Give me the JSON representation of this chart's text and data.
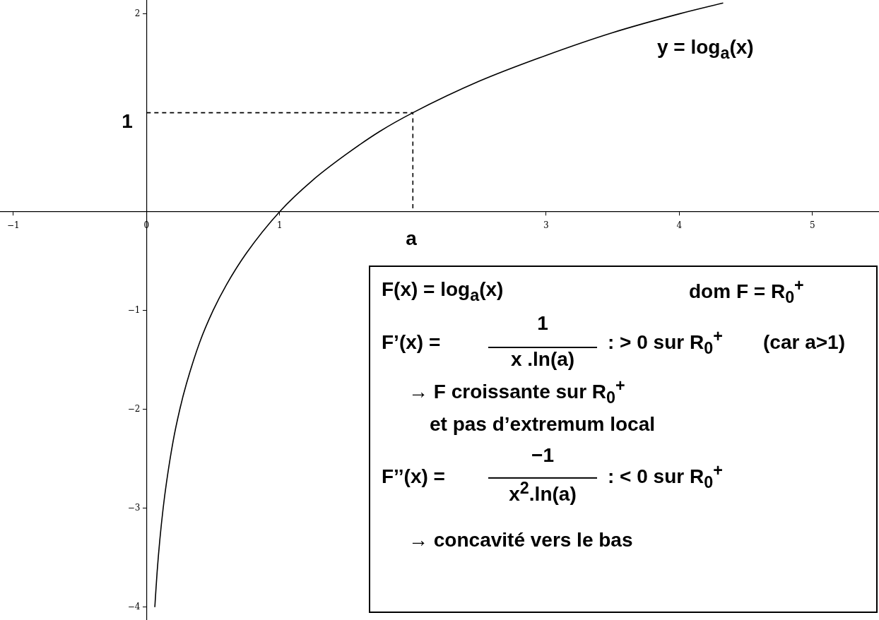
{
  "chart_data": {
    "type": "line",
    "xlim": [
      -1.1,
      5.5
    ],
    "ylim": [
      -4.13,
      2.14
    ],
    "xticks": [
      -1,
      0,
      1,
      3,
      4,
      5
    ],
    "yticks": [
      -4,
      -3,
      -2,
      -1,
      2
    ],
    "grid": false,
    "legend": false,
    "marker": "none",
    "series": [
      {
        "color": "#000000",
        "line_style": "solid",
        "x": [
          0.0625,
          0.07,
          0.08,
          0.1,
          0.125,
          0.15,
          0.2,
          0.25,
          0.3,
          0.4,
          0.5,
          0.6,
          0.75,
          1,
          1.25,
          1.5,
          1.75,
          2,
          2.5,
          3,
          3.5,
          4,
          4.33
        ],
        "values": [
          -4,
          -3.84,
          -3.64,
          -3.32,
          -3,
          -2.74,
          -2.32,
          -2,
          -1.74,
          -1.32,
          -1,
          -0.74,
          -0.42,
          0,
          0.32,
          0.58,
          0.81,
          1,
          1.32,
          1.58,
          1.81,
          2,
          2.11
        ]
      },
      {
        "color": "#000000",
        "line_style": "dashed",
        "x": [
          0,
          2,
          2
        ],
        "values": [
          1,
          1,
          0
        ]
      }
    ],
    "annotations": [
      "y = log$_{a}$(x)",
      "1",
      "a",
      "F(x) = log$_{a}$(x)",
      "dom F = R$_{0}$$^{+}$",
      "F’(x) =",
      "1",
      "x .ln(a)",
      ": > 0  sur R$_{0}$$^{+}$",
      "(car a>1)",
      "→ F croissante sur R$_{0}$$^{+}$",
      "et   pas d’extremum local",
      "F’’(x) =",
      "−1",
      "x$^{2}$.ln(a)",
      ": < 0  sur R$_{0}$$^{+}$",
      "→ concavité vers le bas"
    ]
  }
}
